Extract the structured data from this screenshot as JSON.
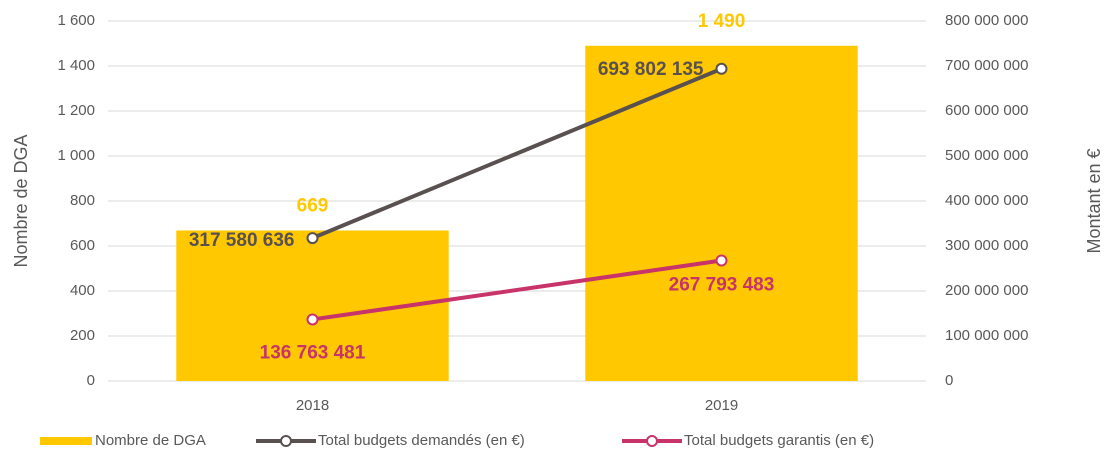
{
  "chart_data": {
    "type": "bar",
    "categories": [
      "2018",
      "2019"
    ],
    "series": [
      {
        "name": "Nombre de DGA",
        "type": "bar",
        "color": "#ffc800",
        "values": [
          669,
          1490
        ],
        "value_labels": [
          "669",
          "1 490"
        ]
      },
      {
        "name": "Total budgets demandés (en €)",
        "type": "line",
        "axis": "y2",
        "color": "#595050",
        "values": [
          317580636,
          693802135
        ],
        "value_labels": [
          "317 580 636",
          "693 802 135"
        ]
      },
      {
        "name": "Total budgets garantis (en €)",
        "type": "line",
        "axis": "y2",
        "color": "#c8336a",
        "values": [
          136763481,
          267793483
        ],
        "value_labels": [
          "136 763 481",
          "267 793 483"
        ]
      }
    ],
    "ylabel": "Nombre de DGA",
    "y2label": "Montant en €",
    "ylim": [
      0,
      1600
    ],
    "yticks": [
      0,
      200,
      400,
      600,
      800,
      {
        "value": 1000,
        "label": "1 000"
      },
      {
        "value": 1200,
        "label": "1 200"
      },
      {
        "value": 1400,
        "label": "1 400"
      },
      {
        "value": 1600,
        "label": "1 600"
      }
    ],
    "y2lim": [
      0,
      800000000
    ],
    "y2ticks": [
      0,
      {
        "value": 100000000,
        "label": "100 000 000"
      },
      {
        "value": 200000000,
        "label": "200 000 000"
      },
      {
        "value": 300000000,
        "label": "300 000 000"
      },
      {
        "value": 400000000,
        "label": "400 000 000"
      },
      {
        "value": 500000000,
        "label": "500 000 000"
      },
      {
        "value": 600000000,
        "label": "600 000 000"
      },
      {
        "value": 700000000,
        "label": "700 000 000"
      },
      {
        "value": 800000000,
        "label": "800 000 000"
      }
    ],
    "grid": true,
    "legend": "bottom"
  }
}
